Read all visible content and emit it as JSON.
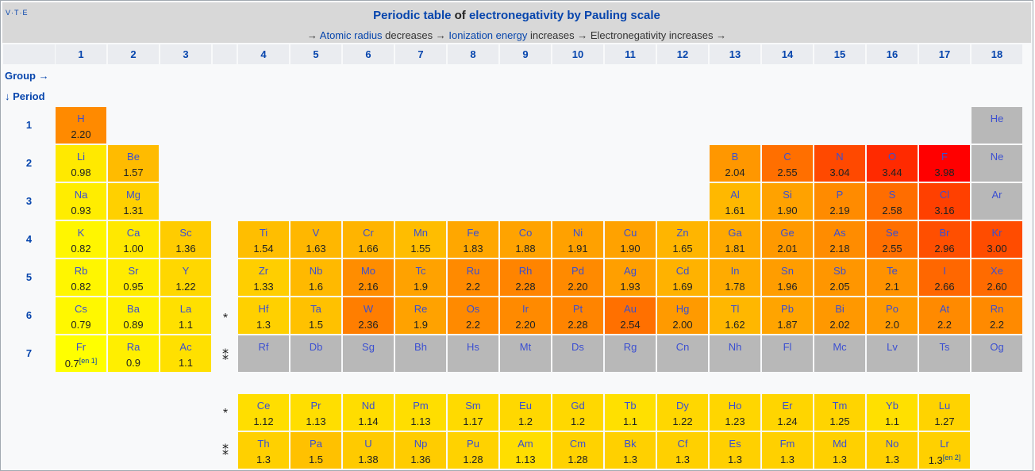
{
  "header": {
    "vte": "V·T·E",
    "title_link1": "Periodic table",
    "title_of": " of ",
    "title_link2": "electronegativity by Pauling scale",
    "sub_arrow1": "→ ",
    "sub_link1": "Atomic radius",
    "sub_text1": " decreases → ",
    "sub_link2": "Ionization energy",
    "sub_text2": " increases → Electronegativity increases →"
  },
  "groups": [
    "1",
    "2",
    "3",
    "",
    "4",
    "5",
    "6",
    "7",
    "8",
    "9",
    "10",
    "11",
    "12",
    "13",
    "14",
    "15",
    "16",
    "17",
    "18"
  ],
  "group_label": "Group →",
  "period_label": "↓ Period",
  "lanthanide_mark": "*",
  "actinide_mark": "⁑",
  "colors": {
    "noble_or_unknown": "#b8b8b8",
    "min": "#ffff00",
    "max": "#ff0000"
  },
  "periods": [
    {
      "label": "1",
      "elements": [
        {
          "g": 1,
          "s": "H",
          "v": "2.20"
        },
        {
          "g": 18,
          "s": "He"
        }
      ]
    },
    {
      "label": "2",
      "elements": [
        {
          "g": 1,
          "s": "Li",
          "v": "0.98"
        },
        {
          "g": 2,
          "s": "Be",
          "v": "1.57"
        },
        {
          "g": 13,
          "s": "B",
          "v": "2.04"
        },
        {
          "g": 14,
          "s": "C",
          "v": "2.55"
        },
        {
          "g": 15,
          "s": "N",
          "v": "3.04"
        },
        {
          "g": 16,
          "s": "O",
          "v": "3.44"
        },
        {
          "g": 17,
          "s": "F",
          "v": "3.98"
        },
        {
          "g": 18,
          "s": "Ne"
        }
      ]
    },
    {
      "label": "3",
      "elements": [
        {
          "g": 1,
          "s": "Na",
          "v": "0.93"
        },
        {
          "g": 2,
          "s": "Mg",
          "v": "1.31"
        },
        {
          "g": 13,
          "s": "Al",
          "v": "1.61"
        },
        {
          "g": 14,
          "s": "Si",
          "v": "1.90"
        },
        {
          "g": 15,
          "s": "P",
          "v": "2.19"
        },
        {
          "g": 16,
          "s": "S",
          "v": "2.58"
        },
        {
          "g": 17,
          "s": "Cl",
          "v": "3.16"
        },
        {
          "g": 18,
          "s": "Ar"
        }
      ]
    },
    {
      "label": "4",
      "elements": [
        {
          "g": 1,
          "s": "K",
          "v": "0.82"
        },
        {
          "g": 2,
          "s": "Ca",
          "v": "1.00"
        },
        {
          "g": 3,
          "s": "Sc",
          "v": "1.36"
        },
        {
          "g": 4,
          "s": "Ti",
          "v": "1.54"
        },
        {
          "g": 5,
          "s": "V",
          "v": "1.63"
        },
        {
          "g": 6,
          "s": "Cr",
          "v": "1.66"
        },
        {
          "g": 7,
          "s": "Mn",
          "v": "1.55"
        },
        {
          "g": 8,
          "s": "Fe",
          "v": "1.83"
        },
        {
          "g": 9,
          "s": "Co",
          "v": "1.88"
        },
        {
          "g": 10,
          "s": "Ni",
          "v": "1.91"
        },
        {
          "g": 11,
          "s": "Cu",
          "v": "1.90"
        },
        {
          "g": 12,
          "s": "Zn",
          "v": "1.65"
        },
        {
          "g": 13,
          "s": "Ga",
          "v": "1.81"
        },
        {
          "g": 14,
          "s": "Ge",
          "v": "2.01"
        },
        {
          "g": 15,
          "s": "As",
          "v": "2.18"
        },
        {
          "g": 16,
          "s": "Se",
          "v": "2.55"
        },
        {
          "g": 17,
          "s": "Br",
          "v": "2.96"
        },
        {
          "g": 18,
          "s": "Kr",
          "v": "3.00"
        }
      ]
    },
    {
      "label": "5",
      "elements": [
        {
          "g": 1,
          "s": "Rb",
          "v": "0.82"
        },
        {
          "g": 2,
          "s": "Sr",
          "v": "0.95"
        },
        {
          "g": 3,
          "s": "Y",
          "v": "1.22"
        },
        {
          "g": 4,
          "s": "Zr",
          "v": "1.33"
        },
        {
          "g": 5,
          "s": "Nb",
          "v": "1.6"
        },
        {
          "g": 6,
          "s": "Mo",
          "v": "2.16"
        },
        {
          "g": 7,
          "s": "Tc",
          "v": "1.9"
        },
        {
          "g": 8,
          "s": "Ru",
          "v": "2.2"
        },
        {
          "g": 9,
          "s": "Rh",
          "v": "2.28"
        },
        {
          "g": 10,
          "s": "Pd",
          "v": "2.20"
        },
        {
          "g": 11,
          "s": "Ag",
          "v": "1.93"
        },
        {
          "g": 12,
          "s": "Cd",
          "v": "1.69"
        },
        {
          "g": 13,
          "s": "In",
          "v": "1.78"
        },
        {
          "g": 14,
          "s": "Sn",
          "v": "1.96"
        },
        {
          "g": 15,
          "s": "Sb",
          "v": "2.05"
        },
        {
          "g": 16,
          "s": "Te",
          "v": "2.1"
        },
        {
          "g": 17,
          "s": "I",
          "v": "2.66"
        },
        {
          "g": 18,
          "s": "Xe",
          "v": "2.60"
        }
      ]
    },
    {
      "label": "6",
      "elements": [
        {
          "g": 1,
          "s": "Cs",
          "v": "0.79"
        },
        {
          "g": 2,
          "s": "Ba",
          "v": "0.89"
        },
        {
          "g": 3,
          "s": "La",
          "v": "1.1"
        },
        {
          "g": 4,
          "s": "Hf",
          "v": "1.3"
        },
        {
          "g": 5,
          "s": "Ta",
          "v": "1.5"
        },
        {
          "g": 6,
          "s": "W",
          "v": "2.36"
        },
        {
          "g": 7,
          "s": "Re",
          "v": "1.9"
        },
        {
          "g": 8,
          "s": "Os",
          "v": "2.2"
        },
        {
          "g": 9,
          "s": "Ir",
          "v": "2.20"
        },
        {
          "g": 10,
          "s": "Pt",
          "v": "2.28"
        },
        {
          "g": 11,
          "s": "Au",
          "v": "2.54"
        },
        {
          "g": 12,
          "s": "Hg",
          "v": "2.00"
        },
        {
          "g": 13,
          "s": "Tl",
          "v": "1.62"
        },
        {
          "g": 14,
          "s": "Pb",
          "v": "1.87"
        },
        {
          "g": 15,
          "s": "Bi",
          "v": "2.02"
        },
        {
          "g": 16,
          "s": "Po",
          "v": "2.0"
        },
        {
          "g": 17,
          "s": "At",
          "v": "2.2"
        },
        {
          "g": 18,
          "s": "Rn",
          "v": "2.2"
        }
      ]
    },
    {
      "label": "7",
      "elements": [
        {
          "g": 1,
          "s": "Fr",
          "v": "0.7",
          "note": "[en 1]"
        },
        {
          "g": 2,
          "s": "Ra",
          "v": "0.9"
        },
        {
          "g": 3,
          "s": "Ac",
          "v": "1.1"
        },
        {
          "g": 4,
          "s": "Rf"
        },
        {
          "g": 5,
          "s": "Db"
        },
        {
          "g": 6,
          "s": "Sg"
        },
        {
          "g": 7,
          "s": "Bh"
        },
        {
          "g": 8,
          "s": "Hs"
        },
        {
          "g": 9,
          "s": "Mt"
        },
        {
          "g": 10,
          "s": "Ds"
        },
        {
          "g": 11,
          "s": "Rg"
        },
        {
          "g": 12,
          "s": "Cn"
        },
        {
          "g": 13,
          "s": "Nh"
        },
        {
          "g": 14,
          "s": "Fl"
        },
        {
          "g": 15,
          "s": "Mc"
        },
        {
          "g": 16,
          "s": "Lv"
        },
        {
          "g": 17,
          "s": "Ts"
        },
        {
          "g": 18,
          "s": "Og"
        }
      ]
    }
  ],
  "lanthanides": [
    {
      "s": "Ce",
      "v": "1.12"
    },
    {
      "s": "Pr",
      "v": "1.13"
    },
    {
      "s": "Nd",
      "v": "1.14"
    },
    {
      "s": "Pm",
      "v": "1.13"
    },
    {
      "s": "Sm",
      "v": "1.17"
    },
    {
      "s": "Eu",
      "v": "1.2"
    },
    {
      "s": "Gd",
      "v": "1.2"
    },
    {
      "s": "Tb",
      "v": "1.1"
    },
    {
      "s": "Dy",
      "v": "1.22"
    },
    {
      "s": "Ho",
      "v": "1.23"
    },
    {
      "s": "Er",
      "v": "1.24"
    },
    {
      "s": "Tm",
      "v": "1.25"
    },
    {
      "s": "Yb",
      "v": "1.1"
    },
    {
      "s": "Lu",
      "v": "1.27"
    }
  ],
  "actinides": [
    {
      "s": "Th",
      "v": "1.3"
    },
    {
      "s": "Pa",
      "v": "1.5"
    },
    {
      "s": "U",
      "v": "1.38"
    },
    {
      "s": "Np",
      "v": "1.36"
    },
    {
      "s": "Pu",
      "v": "1.28"
    },
    {
      "s": "Am",
      "v": "1.13"
    },
    {
      "s": "Cm",
      "v": "1.28"
    },
    {
      "s": "Bk",
      "v": "1.3"
    },
    {
      "s": "Cf",
      "v": "1.3"
    },
    {
      "s": "Es",
      "v": "1.3"
    },
    {
      "s": "Fm",
      "v": "1.3"
    },
    {
      "s": "Md",
      "v": "1.3"
    },
    {
      "s": "No",
      "v": "1.3"
    },
    {
      "s": "Lr",
      "v": "1.3",
      "note": "[en 2]"
    }
  ]
}
